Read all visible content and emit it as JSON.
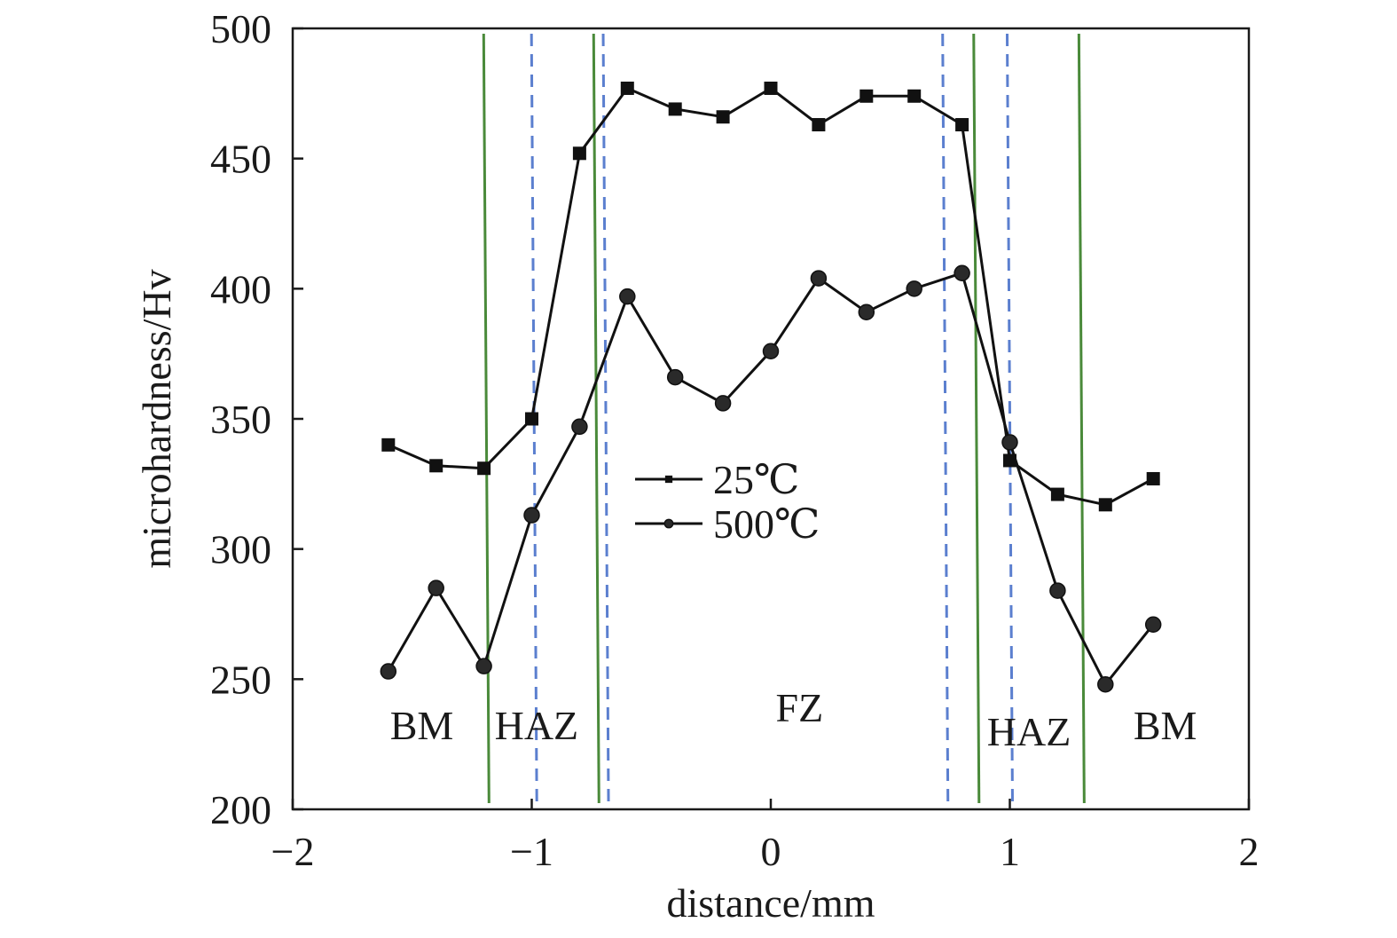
{
  "chart_data": {
    "type": "line",
    "title": "",
    "xlabel": "distance/mm",
    "ylabel": "microhardness/Hv",
    "xlim": [
      -2,
      2
    ],
    "ylim": [
      200,
      500
    ],
    "xticks": [
      -2,
      -1,
      0,
      1,
      2
    ],
    "xtick_labels": [
      "−2",
      "−1",
      "0",
      "1",
      "2"
    ],
    "yticks": [
      200,
      250,
      300,
      350,
      400,
      450,
      500
    ],
    "ytick_labels": [
      "200",
      "250",
      "300",
      "350",
      "400",
      "450",
      "500"
    ],
    "grid": false,
    "legend_position": "center",
    "series": [
      {
        "name": "25℃",
        "marker": "square",
        "color": "#111111",
        "x": [
          -1.6,
          -1.4,
          -1.2,
          -1.0,
          -0.8,
          -0.6,
          -0.4,
          -0.2,
          0.0,
          0.2,
          0.4,
          0.6,
          0.8,
          1.0,
          1.2,
          1.4,
          1.6
        ],
        "y": [
          340,
          332,
          331,
          350,
          452,
          477,
          469,
          466,
          477,
          463,
          474,
          474,
          463,
          334,
          321,
          317,
          327
        ]
      },
      {
        "name": "500℃",
        "marker": "circle",
        "color": "#111111",
        "x": [
          -1.6,
          -1.4,
          -1.2,
          -1.0,
          -0.8,
          -0.6,
          -0.4,
          -0.2,
          0.0,
          0.2,
          0.4,
          0.6,
          0.8,
          1.0,
          1.2,
          1.4,
          1.6
        ],
        "y": [
          253,
          285,
          255,
          313,
          347,
          397,
          366,
          356,
          376,
          404,
          391,
          400,
          406,
          341,
          284,
          248,
          271
        ]
      }
    ],
    "boundary_lines": {
      "solid_color": "#4a8a3a",
      "dashed_color": "#5b7fcf",
      "solid_x": [
        -1.19,
        -0.73,
        0.86,
        1.3
      ],
      "dashed_x": [
        -0.99,
        -0.69,
        0.73,
        1.0
      ]
    },
    "regions": [
      {
        "label": "BM",
        "x": -1.46
      },
      {
        "label": "HAZ",
        "x": -0.98
      },
      {
        "label": "FZ",
        "x": 0.12
      },
      {
        "label": "HAZ",
        "x": 1.08
      },
      {
        "label": "BM",
        "x": 1.65
      }
    ]
  }
}
